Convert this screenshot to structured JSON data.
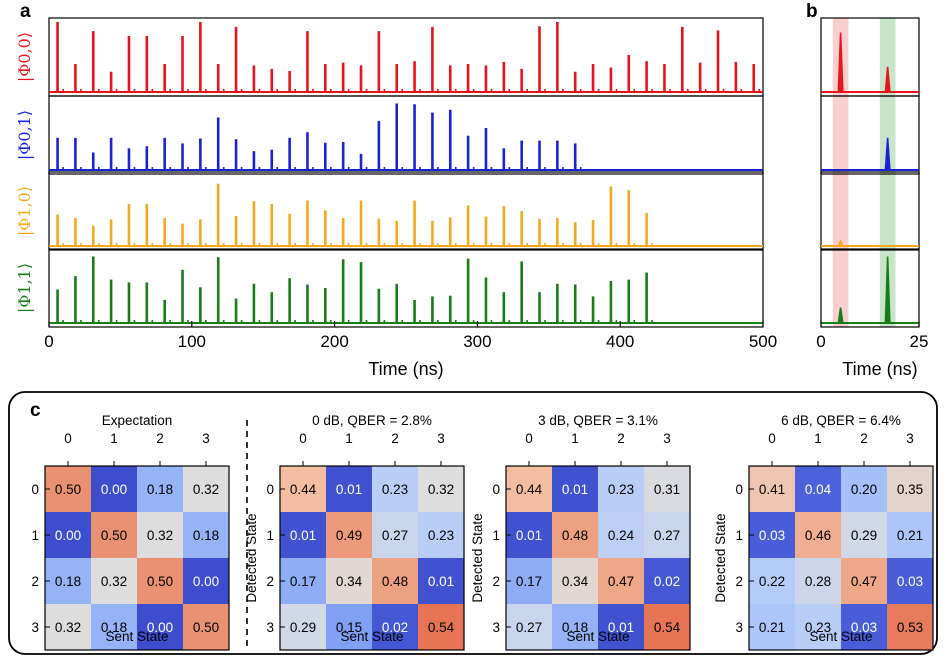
{
  "panel_labels": {
    "a": "a",
    "b": "b",
    "c": "c"
  },
  "state_labels": [
    "|Φ0,0⟩",
    "|Φ0,1⟩",
    "|Φ1,0⟩",
    "|Φ1,1⟩"
  ],
  "state_colors": [
    "#e8141b",
    "#1a22d6",
    "#f7a91d",
    "#177d17"
  ],
  "chart_data": [
    {
      "id": "panel-a",
      "type": "line",
      "xlabel": "Time (ns)",
      "xlim": [
        0,
        500
      ],
      "xticks": [
        "0",
        "100",
        "200",
        "300",
        "400",
        "500"
      ],
      "period_ns": 12.5,
      "series": [
        {
          "name": "|Φ0,0⟩",
          "values": [
            1.0,
            0.4,
            0.87,
            0.29,
            0.8,
            0.8,
            0.4,
            0.8,
            1.0,
            0.4,
            0.93,
            0.38,
            0.33,
            0.3,
            0.87,
            0.4,
            0.42,
            0.38,
            0.87,
            0.4,
            0.44,
            0.93,
            0.38,
            0.4,
            0.38,
            0.43,
            0.33,
            0.94,
            1.0,
            0.29,
            0.4,
            0.35,
            0.53,
            0.44,
            0.4,
            0.93,
            0.42,
            0.88,
            0.43,
            0.4
          ]
        },
        {
          "name": "|Φ0,1⟩",
          "values": [
            0.46,
            0.46,
            0.25,
            0.46,
            0.31,
            0.34,
            0.46,
            0.38,
            0.45,
            0.75,
            0.44,
            0.27,
            0.29,
            0.46,
            0.54,
            0.39,
            0.4,
            0.23,
            0.7,
            0.95,
            0.94,
            0.82,
            0.86,
            0.49,
            0.6,
            0.31,
            0.42,
            0.42,
            0.42,
            0.38
          ]
        },
        {
          "name": "|Φ1,0⟩",
          "values": [
            0.45,
            0.4,
            0.29,
            0.38,
            0.6,
            0.6,
            0.4,
            0.32,
            0.38,
            0.89,
            0.43,
            0.64,
            0.6,
            0.46,
            0.65,
            0.51,
            0.4,
            0.65,
            0.39,
            0.36,
            0.65,
            0.36,
            0.41,
            0.58,
            0.42,
            0.57,
            0.5,
            0.39,
            0.4,
            0.34,
            0.37,
            0.85,
            0.8,
            0.47
          ]
        },
        {
          "name": "|Φ1,1⟩",
          "values": [
            0.48,
            0.67,
            0.95,
            0.62,
            0.58,
            0.58,
            0.33,
            0.76,
            0.51,
            0.94,
            0.35,
            0.56,
            0.44,
            0.64,
            0.55,
            0.5,
            0.91,
            0.87,
            0.49,
            0.56,
            0.33,
            0.38,
            0.39,
            0.92,
            0.65,
            0.44,
            0.88,
            0.44,
            0.56,
            0.55,
            0.38,
            0.6,
            0.62,
            0.72
          ]
        }
      ]
    },
    {
      "id": "panel-b",
      "type": "line",
      "xlabel": "Time (ns)",
      "xlim": [
        0,
        25
      ],
      "xticks": [
        "0",
        "25"
      ],
      "shaded_windows": [
        {
          "from": 3,
          "to": 7,
          "color": "#f4a6a6"
        },
        {
          "from": 15,
          "to": 19,
          "color": "#9ccf9c"
        }
      ],
      "series": [
        {
          "name": "|Φ0,0⟩",
          "peaks": [
            {
              "t": 5,
              "value": 0.85
            },
            {
              "t": 17,
              "value": 0.36
            }
          ]
        },
        {
          "name": "|Φ0,1⟩",
          "peaks": [
            {
              "t": 17,
              "value": 0.46
            }
          ]
        },
        {
          "name": "|Φ1,0⟩",
          "peaks": [
            {
              "t": 5,
              "value": 0.07
            }
          ]
        },
        {
          "name": "|Φ1,1⟩",
          "peaks": [
            {
              "t": 5,
              "value": 0.22
            },
            {
              "t": 17,
              "value": 0.95
            }
          ]
        }
      ]
    },
    {
      "id": "panel-c",
      "type": "heatmap",
      "xlabel": "Sent State",
      "ylabel": "Detected State",
      "tick_labels": [
        "0",
        "1",
        "2",
        "3"
      ],
      "matrices": [
        {
          "title": "Expectation",
          "values": [
            [
              "0.50",
              "0.00",
              "0.18",
              "0.32"
            ],
            [
              "0.00",
              "0.50",
              "0.32",
              "0.18"
            ],
            [
              "0.18",
              "0.32",
              "0.50",
              "0.00"
            ],
            [
              "0.32",
              "0.18",
              "0.00",
              "0.50"
            ]
          ]
        },
        {
          "title": "0 dB, QBER = 2.8%",
          "values": [
            [
              "0.44",
              "0.01",
              "0.23",
              "0.32"
            ],
            [
              "0.01",
              "0.49",
              "0.27",
              "0.23"
            ],
            [
              "0.17",
              "0.34",
              "0.48",
              "0.01"
            ],
            [
              "0.29",
              "0.15",
              "0.02",
              "0.54"
            ]
          ]
        },
        {
          "title": "3 dB, QBER = 3.1%",
          "values": [
            [
              "0.44",
              "0.01",
              "0.23",
              "0.31"
            ],
            [
              "0.01",
              "0.48",
              "0.24",
              "0.27"
            ],
            [
              "0.17",
              "0.34",
              "0.47",
              "0.02"
            ],
            [
              "0.27",
              "0.18",
              "0.01",
              "0.54"
            ]
          ]
        },
        {
          "title": "6 dB, QBER = 6.4%",
          "values": [
            [
              "0.41",
              "0.04",
              "0.20",
              "0.35"
            ],
            [
              "0.03",
              "0.46",
              "0.29",
              "0.21"
            ],
            [
              "0.22",
              "0.28",
              "0.47",
              "0.03"
            ],
            [
              "0.21",
              "0.23",
              "0.03",
              "0.53"
            ]
          ]
        }
      ]
    }
  ]
}
